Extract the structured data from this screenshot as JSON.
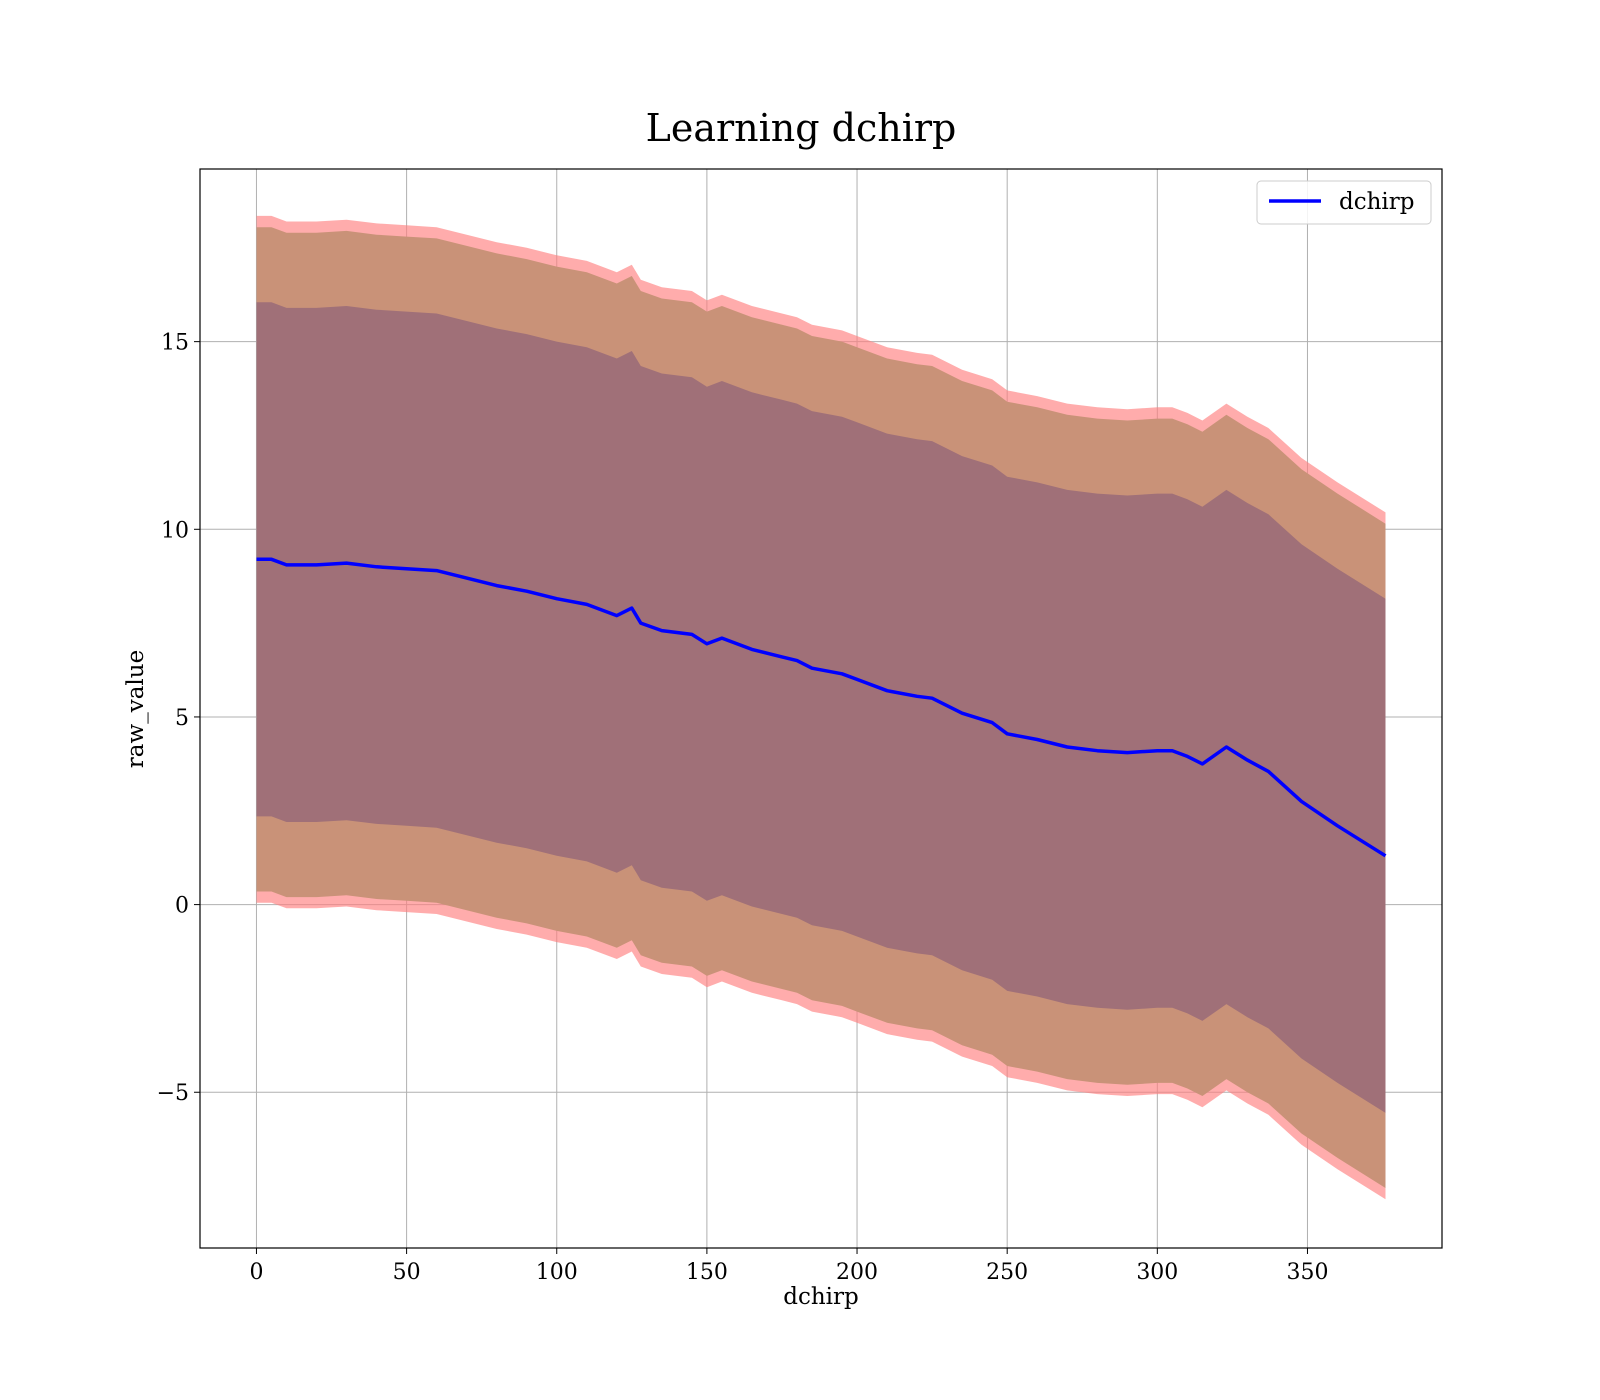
{
  "chart_data": {
    "type": "line",
    "title": "Learning dchirp",
    "xlabel": "dchirp",
    "ylabel": "raw_value",
    "xlim": [
      -18.8,
      394.8
    ],
    "ylim": [
      -9.15,
      19.6
    ],
    "xticks": [
      0,
      50,
      100,
      150,
      200,
      250,
      300,
      350
    ],
    "yticks": [
      -5,
      0,
      5,
      10,
      15
    ],
    "ytick_labels": [
      "−5",
      "0",
      "5",
      "10",
      "15"
    ],
    "grid": true,
    "legend": {
      "position": "top-right",
      "entries": [
        "dchirp"
      ]
    },
    "colors": {
      "line": "#0000ff",
      "outer_band": "#ff7f7f",
      "middle_band": "#c99278",
      "inner_band": "#a07078",
      "grid": "#b0b0b0"
    },
    "x": [
      0,
      5,
      10,
      20,
      30,
      40,
      50,
      60,
      70,
      80,
      90,
      100,
      110,
      120,
      125,
      128,
      135,
      145,
      150,
      155,
      165,
      175,
      180,
      185,
      195,
      200,
      210,
      220,
      225,
      235,
      245,
      250,
      260,
      270,
      280,
      290,
      300,
      305,
      310,
      315,
      323,
      330,
      337,
      348,
      360,
      376
    ],
    "series": [
      {
        "name": "dchirp",
        "values": [
          9.2,
          9.2,
          9.05,
          9.05,
          9.1,
          9.0,
          8.95,
          8.9,
          8.7,
          8.5,
          8.35,
          8.15,
          8.0,
          7.7,
          7.9,
          7.5,
          7.3,
          7.2,
          6.95,
          7.1,
          6.8,
          6.6,
          6.5,
          6.3,
          6.15,
          6.0,
          5.7,
          5.55,
          5.5,
          5.1,
          4.85,
          4.55,
          4.4,
          4.2,
          4.1,
          4.05,
          4.1,
          4.1,
          3.95,
          3.75,
          4.2,
          3.85,
          3.55,
          2.75,
          2.1,
          1.3
        ],
        "std_inner": 6.85,
        "std_middle": 8.85,
        "std_outer": 9.15
      }
    ]
  }
}
